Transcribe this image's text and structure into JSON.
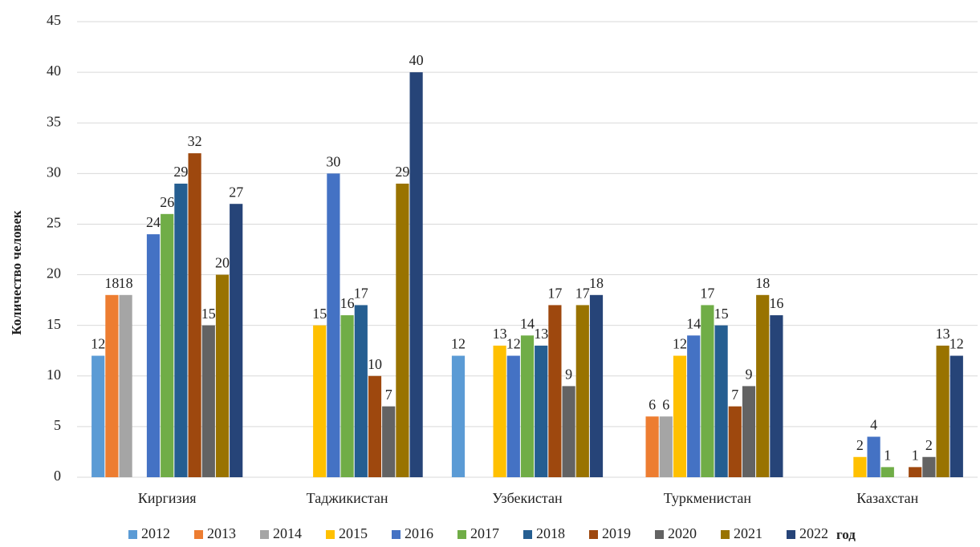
{
  "chart_data": {
    "type": "bar",
    "y_label": "Количество человек",
    "x_label": "год",
    "categories": [
      "Киргизия",
      "Таджикистан",
      "Узбекистан",
      "Туркменистан",
      "Казахстан"
    ],
    "series": [
      {
        "name": "2012",
        "color": "#5b9bd5",
        "values": [
          12,
          null,
          12,
          null,
          null
        ]
      },
      {
        "name": "2013",
        "color": "#ed7d31",
        "values": [
          18,
          null,
          null,
          6,
          null
        ]
      },
      {
        "name": "2014",
        "color": "#a5a5a5",
        "values": [
          18,
          null,
          null,
          6,
          null
        ]
      },
      {
        "name": "2015",
        "color": "#ffc000",
        "values": [
          null,
          15,
          13,
          12,
          2
        ]
      },
      {
        "name": "2016",
        "color": "#4472c4",
        "values": [
          24,
          30,
          12,
          14,
          4
        ]
      },
      {
        "name": "2017",
        "color": "#70ad47",
        "values": [
          26,
          16,
          14,
          17,
          1
        ]
      },
      {
        "name": "2018",
        "color": "#255e91",
        "values": [
          29,
          17,
          13,
          15,
          null
        ]
      },
      {
        "name": "2019",
        "color": "#9e480e",
        "values": [
          32,
          10,
          17,
          7,
          1
        ]
      },
      {
        "name": "2020",
        "color": "#636363",
        "values": [
          15,
          7,
          9,
          9,
          2
        ]
      },
      {
        "name": "2021",
        "color": "#997300",
        "values": [
          20,
          29,
          17,
          18,
          13
        ]
      },
      {
        "name": "2022",
        "color": "#264478",
        "values": [
          27,
          40,
          18,
          16,
          12
        ]
      }
    ],
    "ylim": [
      0,
      45
    ],
    "yticks": [
      0,
      5,
      10,
      15,
      20,
      25,
      30,
      35,
      40,
      45
    ],
    "grid": true
  }
}
